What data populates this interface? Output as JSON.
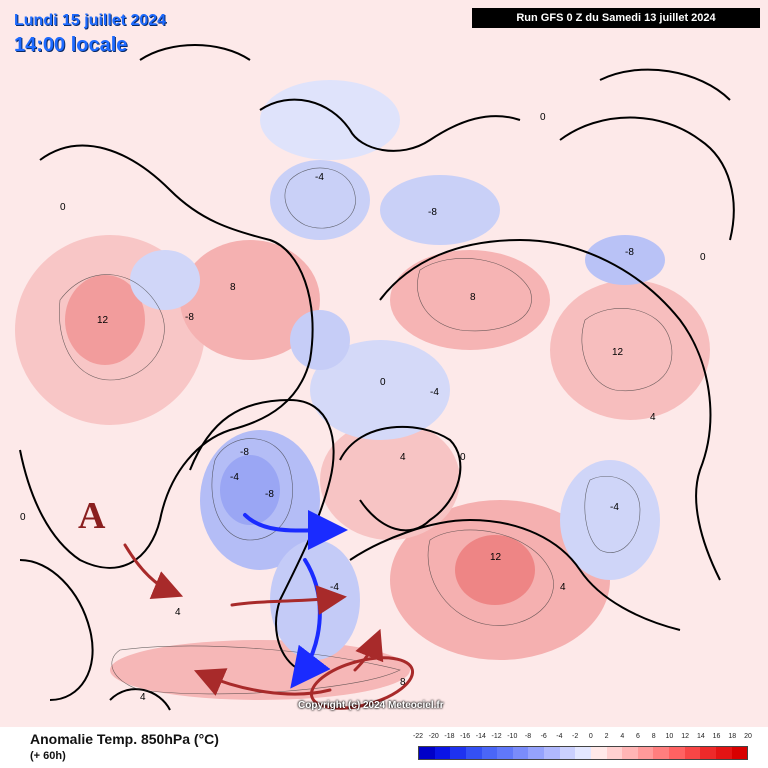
{
  "header": {
    "date_title": "Lundi 15 juillet 2024",
    "time_title": "14:00 locale",
    "run_info": "Run GFS 0 Z du Samedi 13 juillet 2024"
  },
  "footer": {
    "variable_title": "Anomalie Temp. 850hPa (°C)",
    "lead_time": "(+ 60h)",
    "copyright": "Copyright (c) 2024 Meteociel.fr"
  },
  "annotation": {
    "letter": "A"
  },
  "legend": {
    "labels": [
      "-22",
      "-20",
      "-18",
      "-16",
      "-14",
      "-12",
      "-10",
      "-8",
      "-6",
      "-4",
      "-2",
      "0",
      "2",
      "4",
      "6",
      "8",
      "10",
      "12",
      "14",
      "16",
      "18",
      "20"
    ],
    "colors": [
      "#0000c8",
      "#0a14e6",
      "#1e32f0",
      "#3450f5",
      "#4a66f8",
      "#6078fa",
      "#7a8cfb",
      "#95a2fc",
      "#b0b8fd",
      "#cbd0fe",
      "#e4e7ff",
      "#ffe9e9",
      "#ffd0d0",
      "#ffb5b5",
      "#ff9a9a",
      "#ff7e7e",
      "#ff6262",
      "#f84646",
      "#ee2a2a",
      "#e41414",
      "#d80000"
    ]
  },
  "colors": {
    "warm_anomaly": "#f7a9a9",
    "cold_anomaly": "#a9b3f7",
    "blue_arrow": "#1a2bff",
    "red_arrow": "#a82a2a",
    "title_blue": "#1e6bff"
  },
  "contour_labels": [
    "0",
    "-4",
    "4",
    "-8",
    "8",
    "12"
  ],
  "icons": {
    "blue_arrows": "curved-arrow-blue",
    "red_arrows": "curved-arrow-red",
    "ellipse": "circled-zone-red"
  }
}
